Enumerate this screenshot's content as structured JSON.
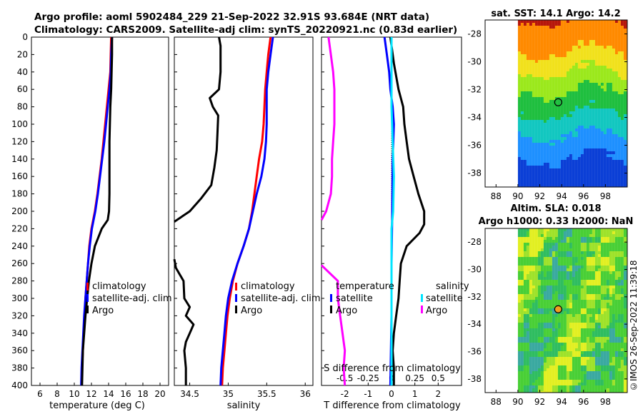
{
  "header": {
    "line1": "Argo profile: aoml 5902484_229 21-Sep-2022 32.91S 93.684E (NRT data)",
    "line2": "Climatology: CARS2009. Satellite-adj clim: synTS_20220921.nc (0.83d earlier)"
  },
  "colors": {
    "climatology": "#ff0000",
    "satellite": "#0000ff",
    "argo": "#000000",
    "sat_salinity": "#00e5ff",
    "argo_salinity": "#ff00ff"
  },
  "depth_ticks": [
    "0",
    "20",
    "40",
    "60",
    "80",
    "100",
    "120",
    "140",
    "160",
    "180",
    "200",
    "220",
    "240",
    "260",
    "280",
    "300",
    "320",
    "340",
    "360",
    "380",
    "400"
  ],
  "chart_data": [
    {
      "type": "line",
      "id": "temperature",
      "xlabel": "temperature (deg C)",
      "ylabel": "",
      "xlim": [
        5,
        21
      ],
      "ylim": [
        400,
        0
      ],
      "xticks": [
        "6",
        "8",
        "10",
        "12",
        "14",
        "16",
        "18",
        "20"
      ],
      "legend": [
        "climatology",
        "satellite-adj. clim",
        "Argo"
      ],
      "series": [
        {
          "name": "climatology",
          "color": "#ff0000",
          "depth": [
            0,
            20,
            40,
            60,
            80,
            100,
            120,
            140,
            160,
            180,
            200,
            220,
            240,
            260,
            280,
            300,
            320,
            340,
            360,
            380,
            400
          ],
          "values": [
            14.3,
            14.25,
            14.2,
            14.0,
            13.8,
            13.6,
            13.4,
            13.2,
            12.95,
            12.7,
            12.4,
            12.0,
            11.75,
            11.6,
            11.45,
            11.3,
            11.2,
            11.1,
            11.0,
            10.9,
            10.85
          ]
        },
        {
          "name": "satellite-adj. clim",
          "color": "#0000ff",
          "depth": [
            0,
            20,
            40,
            60,
            80,
            100,
            120,
            140,
            160,
            180,
            200,
            220,
            240,
            260,
            280,
            300,
            320,
            340,
            360,
            380,
            400
          ],
          "values": [
            14.4,
            14.3,
            14.25,
            14.1,
            13.9,
            13.7,
            13.5,
            13.25,
            13.0,
            12.75,
            12.45,
            12.05,
            11.8,
            11.6,
            11.45,
            11.3,
            11.15,
            11.05,
            10.95,
            10.85,
            10.8
          ]
        },
        {
          "name": "Argo",
          "color": "#000000",
          "depth": [
            0,
            20,
            40,
            60,
            80,
            100,
            120,
            140,
            160,
            180,
            200,
            210,
            220,
            240,
            260,
            280,
            300,
            320,
            340,
            360,
            380,
            400
          ],
          "values": [
            14.4,
            14.4,
            14.35,
            14.3,
            14.2,
            14.15,
            14.1,
            14.1,
            14.1,
            14.1,
            14.05,
            13.9,
            13.2,
            12.4,
            12.0,
            11.7,
            11.5,
            11.3,
            11.15,
            11.0,
            10.95,
            10.9
          ]
        }
      ]
    },
    {
      "type": "line",
      "id": "salinity",
      "xlabel": "salinity",
      "xlim": [
        34.3,
        36.1
      ],
      "ylim": [
        400,
        0
      ],
      "xticks": [
        "34.5",
        "35",
        "35.5",
        "36"
      ],
      "legend": [
        "climatology",
        "satellite-adj. clim",
        "Argo"
      ],
      "series": [
        {
          "name": "climatology",
          "color": "#ff0000",
          "depth": [
            0,
            20,
            40,
            60,
            80,
            100,
            120,
            140,
            160,
            180,
            200,
            220,
            240,
            260,
            280,
            300,
            320,
            340,
            360,
            380,
            400
          ],
          "values": [
            35.55,
            35.52,
            35.5,
            35.48,
            35.47,
            35.46,
            35.44,
            35.4,
            35.37,
            35.34,
            35.31,
            35.27,
            35.2,
            35.12,
            35.06,
            35.02,
            34.99,
            34.97,
            34.95,
            34.93,
            34.92
          ]
        },
        {
          "name": "satellite-adj. clim",
          "color": "#0000ff",
          "depth": [
            0,
            20,
            40,
            60,
            80,
            100,
            120,
            140,
            160,
            180,
            200,
            220,
            240,
            260,
            280,
            300,
            320,
            340,
            360,
            380,
            400
          ],
          "values": [
            35.58,
            35.55,
            35.52,
            35.5,
            35.5,
            35.5,
            35.49,
            35.47,
            35.43,
            35.37,
            35.32,
            35.27,
            35.2,
            35.12,
            35.05,
            35.0,
            34.97,
            34.95,
            34.93,
            34.91,
            34.9
          ]
        },
        {
          "name": "Argo",
          "color": "#000000",
          "depth": [
            0,
            10,
            40,
            60,
            70,
            80,
            90,
            110,
            130,
            150,
            170,
            185,
            200,
            212
          ],
          "values": [
            34.88,
            34.9,
            34.9,
            34.88,
            34.76,
            34.8,
            34.87,
            34.86,
            34.85,
            34.82,
            34.78,
            34.65,
            34.5,
            34.3
          ]
        },
        {
          "name": "Argo-deep",
          "color": "#000000",
          "depth": [
            255,
            265,
            280,
            300,
            310,
            320,
            330,
            340,
            350,
            360,
            380,
            400
          ],
          "values": [
            34.3,
            34.32,
            34.42,
            34.43,
            34.5,
            34.45,
            34.55,
            34.5,
            34.45,
            34.43,
            34.45,
            34.45
          ]
        }
      ]
    },
    {
      "type": "line",
      "id": "difference",
      "xlabel": "T difference from climatology",
      "xlabel_top": "S difference from climatology",
      "xlim": [
        -3,
        3
      ],
      "ylim": [
        400,
        0
      ],
      "xticks": [
        "-2",
        "-1",
        "0",
        "1",
        "2"
      ],
      "xticks_top": [
        "-0.5",
        "-0.25",
        "0",
        "0.25",
        "0.5"
      ],
      "legend_t": {
        "title": "temperature",
        "items": [
          "satellite",
          "Argo"
        ]
      },
      "legend_s": {
        "title": "salinity",
        "items": [
          "satellite",
          "Argo"
        ]
      },
      "series": [
        {
          "name": "T satellite",
          "color": "#0000ff",
          "depth": [
            0,
            20,
            40,
            60,
            80,
            100,
            140,
            200,
            260,
            320,
            400
          ],
          "values": [
            -0.3,
            -0.2,
            -0.1,
            -0.05,
            0.05,
            0.1,
            0.05,
            0.03,
            0.0,
            0.0,
            -0.05
          ]
        },
        {
          "name": "T Argo",
          "color": "#000000",
          "depth": [
            0,
            30,
            60,
            80,
            100,
            120,
            140,
            160,
            180,
            200,
            215,
            225,
            240,
            260,
            280,
            300,
            320,
            340,
            360,
            380,
            400
          ],
          "values": [
            -0.05,
            0.1,
            0.3,
            0.5,
            0.55,
            0.65,
            0.75,
            0.95,
            1.15,
            1.4,
            1.4,
            1.2,
            0.65,
            0.4,
            0.35,
            0.3,
            0.2,
            0.1,
            0.05,
            0.1,
            0.1
          ]
        },
        {
          "name": "S satellite",
          "color": "#00e5ff",
          "depth": [
            0,
            40,
            80,
            120,
            160,
            200,
            220,
            260,
            320,
            400
          ],
          "values": [
            0.0,
            0.0,
            0.0,
            0.05,
            0.1,
            0.07,
            0.0,
            0.0,
            0.0,
            0.0
          ]
        },
        {
          "name": "S Argo",
          "color": "#ff00ff",
          "depth": [
            0,
            20,
            40,
            60,
            80,
            100,
            120,
            140,
            160,
            180,
            200,
            210
          ],
          "values": [
            -2.7,
            -2.6,
            -2.5,
            -2.45,
            -2.45,
            -2.45,
            -2.5,
            -2.55,
            -2.55,
            -2.6,
            -2.8,
            -3.0
          ]
        },
        {
          "name": "S Argo deep",
          "color": "#ff00ff",
          "depth": [
            262,
            280,
            300,
            320,
            340,
            360,
            380,
            400
          ],
          "values": [
            -3.0,
            -2.3,
            -2.3,
            -2.2,
            -2.1,
            -2.0,
            -2.05,
            -2.0
          ]
        }
      ]
    },
    {
      "type": "heatmap",
      "id": "sst_map",
      "title": "sat. SST: 14.1 Argo: 14.2",
      "xlim": [
        87,
        100
      ],
      "ylim": [
        -39,
        -27
      ],
      "xticks": [
        "88",
        "90",
        "92",
        "94",
        "96",
        "98"
      ],
      "yticks": [
        "-28",
        "-30",
        "-32",
        "-34",
        "-36",
        "-38"
      ],
      "data_lon_range": [
        90,
        100
      ],
      "marker": {
        "lon": 93.684,
        "lat": -32.91,
        "fill": "none"
      }
    },
    {
      "type": "heatmap",
      "id": "sla_map",
      "title": "Altim. SLA: 0.018",
      "subtitle": "Argo h1000: 0.33 h2000: NaN",
      "xlim": [
        87,
        100
      ],
      "ylim": [
        -39,
        -27
      ],
      "xticks": [
        "88",
        "90",
        "92",
        "94",
        "96",
        "98"
      ],
      "yticks": [
        "-28",
        "-30",
        "-32",
        "-34",
        "-36",
        "-38"
      ],
      "data_lon_range": [
        90,
        100
      ],
      "marker": {
        "lon": 93.684,
        "lat": -32.91,
        "fill": "#f0a020"
      }
    }
  ],
  "copyright": "©IMOS 26-Sep-2022 11:39:18"
}
